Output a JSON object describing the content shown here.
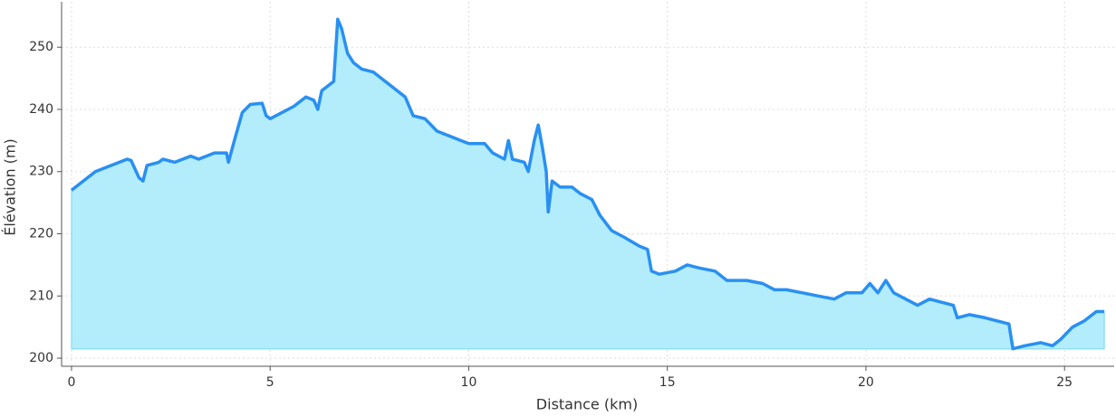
{
  "chart_data": {
    "type": "area",
    "x_label": "Distance (km)",
    "y_label": "Élévation (m)",
    "x": [
      0,
      0.2,
      0.4,
      0.6,
      1.0,
      1.4,
      1.5,
      1.7,
      1.8,
      1.9,
      2.2,
      2.3,
      2.6,
      3.0,
      3.2,
      3.6,
      3.9,
      3.95,
      4.1,
      4.3,
      4.5,
      4.8,
      4.9,
      5.0,
      5.3,
      5.6,
      5.9,
      6.1,
      6.2,
      6.3,
      6.6,
      6.7,
      6.8,
      6.95,
      7.1,
      7.3,
      7.6,
      8.0,
      8.4,
      8.6,
      8.9,
      9.2,
      9.6,
      10.0,
      10.4,
      10.6,
      10.9,
      11.0,
      11.1,
      11.4,
      11.5,
      11.65,
      11.75,
      11.85,
      11.95,
      12.0,
      12.1,
      12.3,
      12.6,
      12.8,
      13.1,
      13.3,
      13.6,
      13.9,
      14.3,
      14.5,
      14.6,
      14.8,
      15.2,
      15.5,
      15.8,
      16.2,
      16.5,
      17.0,
      17.4,
      17.7,
      18.0,
      18.4,
      18.8,
      19.2,
      19.5,
      19.9,
      20.1,
      20.3,
      20.5,
      20.7,
      21.0,
      21.3,
      21.6,
      21.9,
      22.2,
      22.3,
      22.6,
      23.0,
      23.3,
      23.6,
      23.7,
      24.0,
      24.4,
      24.7,
      24.9,
      25.2,
      25.5,
      25.8,
      26.0
    ],
    "series": [
      {
        "color": "#2990f2",
        "fill": "#b3ecfb",
        "values": [
          227,
          228,
          229,
          230,
          231,
          232,
          231.8,
          229,
          228.5,
          231,
          231.5,
          232,
          231.5,
          232.5,
          232,
          233,
          233,
          231.5,
          235,
          239.5,
          240.8,
          241,
          239,
          238.5,
          239.5,
          240.5,
          242,
          241.5,
          240,
          243,
          244.5,
          254.5,
          253,
          249,
          247.5,
          246.5,
          246,
          244,
          242,
          239,
          238.5,
          236.5,
          235.5,
          234.5,
          234.5,
          233,
          232,
          235,
          232,
          231.5,
          230,
          235,
          237.5,
          234,
          230,
          223.5,
          228.5,
          227.5,
          227.5,
          226.5,
          225.5,
          223,
          220.5,
          219.5,
          218,
          217.5,
          214,
          213.5,
          214,
          215,
          214.5,
          214,
          212.5,
          212.5,
          212,
          211,
          211,
          210.5,
          210,
          209.5,
          210.5,
          210.5,
          212,
          210.5,
          212.5,
          210.5,
          209.5,
          208.5,
          209.5,
          209,
          208.5,
          206.5,
          207,
          206.5,
          206,
          205.5,
          201.5,
          202,
          202.5,
          202,
          203,
          205,
          206,
          207.5,
          207.5
        ]
      }
    ],
    "xlim": [
      -0.25,
      26.25
    ],
    "ylim": [
      198.7,
      257.3
    ],
    "xticks": [
      0,
      5,
      10,
      15,
      20,
      25
    ],
    "yticks": [
      200,
      210,
      220,
      230,
      240,
      250
    ],
    "grid": true
  }
}
